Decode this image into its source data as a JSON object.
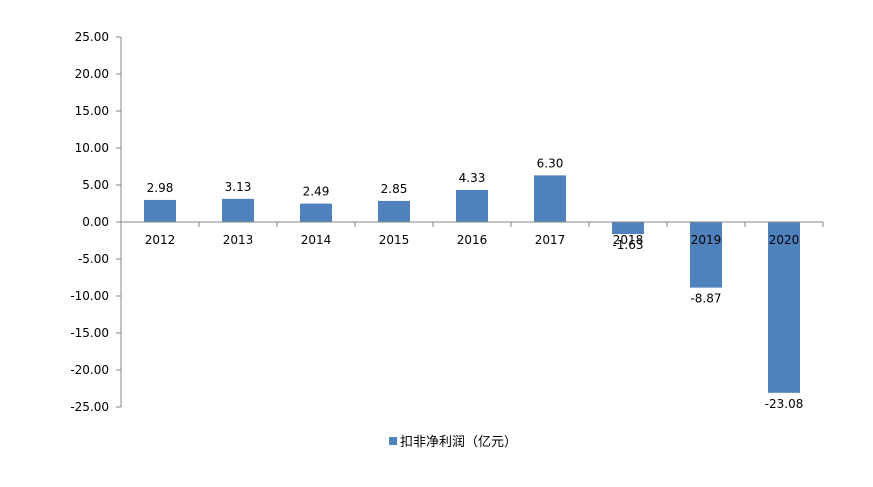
{
  "chart_data": {
    "type": "bar",
    "categories": [
      "2012",
      "2013",
      "2014",
      "2015",
      "2016",
      "2017",
      "2018",
      "2019",
      "2020"
    ],
    "series": [
      {
        "name": "扣非净利润（亿元）",
        "values": [
          2.98,
          3.13,
          2.49,
          2.85,
          4.33,
          6.3,
          -1.63,
          -8.87,
          -23.08
        ]
      }
    ],
    "data_labels": [
      "2.98",
      "3.13",
      "2.49",
      "2.85",
      "4.33",
      "6.30",
      "-1.63",
      "-8.87",
      "-23.08"
    ],
    "ylim": [
      -25,
      25
    ],
    "yticks": [
      25,
      20,
      15,
      10,
      5,
      0,
      -5,
      -10,
      -15,
      -20,
      -25
    ],
    "ytick_labels": [
      "25.00",
      "20.00",
      "15.00",
      "10.00",
      "5.00",
      "0.00",
      "-5.00",
      "-10.00",
      "-15.00",
      "-20.00",
      "-25.00"
    ],
    "legend_position": "bottom",
    "grid": false,
    "bar_color": "#4F81BD",
    "axis_color": "#868686"
  }
}
